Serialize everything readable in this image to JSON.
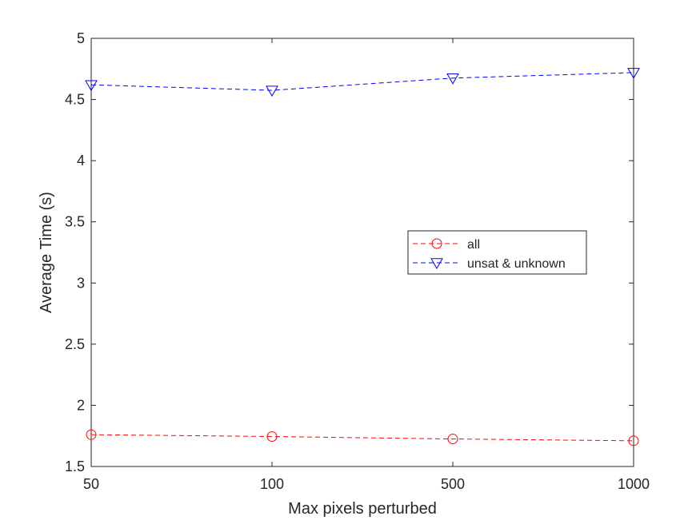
{
  "chart_data": {
    "type": "line",
    "title": "",
    "xlabel": "Max pixels perturbed",
    "ylabel": "Average Time (s)",
    "categories": [
      "50",
      "100",
      "500",
      "1000"
    ],
    "ylim": [
      1.5,
      5
    ],
    "yticks": [
      "1.5",
      "2",
      "2.5",
      "3",
      "3.5",
      "4",
      "4.5",
      "5"
    ],
    "grid": false,
    "legend_position": "center-right",
    "series": [
      {
        "name": "all",
        "values": [
          1.76,
          1.745,
          1.725,
          1.71
        ],
        "color": "#ff0000",
        "marker": "circle",
        "line_style": "dashed"
      },
      {
        "name": "unsat & unknown",
        "values": [
          4.62,
          4.575,
          4.675,
          4.72
        ],
        "color": "#0000ff",
        "marker": "triangle-down",
        "line_style": "dashed"
      }
    ]
  }
}
